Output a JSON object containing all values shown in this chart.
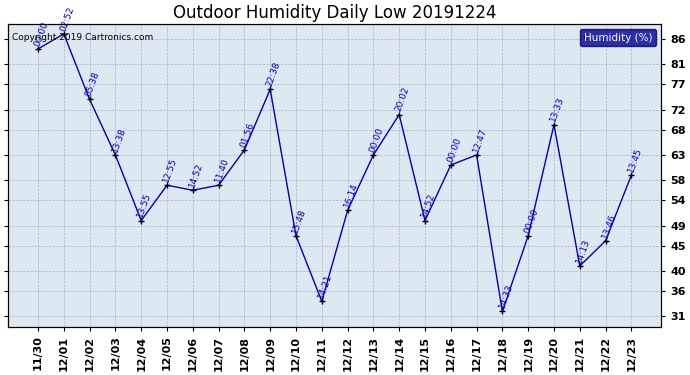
{
  "title": "Outdoor Humidity Daily Low 20191224",
  "ylabel_right": "Humidity (%)",
  "background_color": "#ffffff",
  "plot_bg_color": "#dde8f0",
  "grid_color": "#aaaacc",
  "line_color": "#0000bb",
  "marker_color": "#000000",
  "text_color": "#0000cc",
  "legend_bg": "#000099",
  "legend_text": "#ffffff",
  "copyright_text": "Copyright 2019 Cartronics.com",
  "x_labels": [
    "11/30",
    "12/01",
    "12/02",
    "12/03",
    "12/04",
    "12/05",
    "12/06",
    "12/07",
    "12/08",
    "12/09",
    "12/10",
    "12/11",
    "12/12",
    "12/13",
    "12/14",
    "12/15",
    "12/16",
    "12/17",
    "12/18",
    "12/19",
    "12/20",
    "12/21",
    "12/22",
    "12/23"
  ],
  "y_values": [
    84,
    87,
    74,
    63,
    50,
    57,
    56,
    57,
    64,
    76,
    47,
    34,
    52,
    63,
    71,
    50,
    61,
    63,
    32,
    47,
    69,
    41,
    46,
    59
  ],
  "time_labels": [
    "00:00",
    "02:52",
    "05:38",
    "13:38",
    "13:55",
    "12:55",
    "14:52",
    "11:40",
    "01:56",
    "22:38",
    "15:48",
    "14:21",
    "16:14",
    "00:00",
    "20:02",
    "14:52",
    "00:00",
    "12:47",
    "14:33",
    "00:00",
    "13:33",
    "14:13",
    "13:46",
    "13:45"
  ],
  "ylim": [
    29,
    89
  ],
  "yticks": [
    31,
    36,
    40,
    45,
    49,
    54,
    58,
    63,
    68,
    72,
    77,
    81,
    86
  ],
  "title_fontsize": 12,
  "tick_fontsize": 8,
  "label_fontsize": 7
}
